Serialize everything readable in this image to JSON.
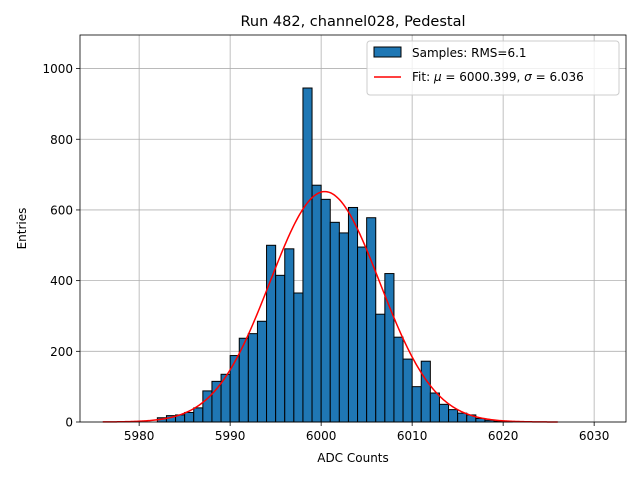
{
  "chart_data": {
    "type": "bar",
    "title": "Run 482, channel028, Pedestal",
    "xlabel": "ADC Counts",
    "ylabel": "Entries",
    "xlim": [
      5973.5,
      6033.5
    ],
    "ylim": [
      0,
      1095
    ],
    "x_ticks": [
      5980,
      5990,
      6000,
      6010,
      6020,
      6030
    ],
    "y_ticks": [
      0,
      200,
      400,
      600,
      800,
      1000
    ],
    "grid": true,
    "legend_position": "top-right",
    "histogram": {
      "name": "Samples: RMS=6.1",
      "color": "#1f77b4",
      "edge_color": "#000000",
      "bin_edges_start": 5982,
      "bin_width": 1,
      "values": [
        12,
        18,
        20,
        27,
        40,
        88,
        115,
        135,
        188,
        237,
        250,
        285,
        500,
        415,
        490,
        365,
        945,
        670,
        630,
        565,
        535,
        607,
        495,
        578,
        305,
        420,
        240,
        178,
        100,
        172,
        82,
        50,
        35,
        25,
        20,
        10,
        5,
        2,
        1
      ]
    },
    "fit": {
      "name": "Fit: μ = 6000.399, σ = 6.036",
      "label_prefix": "Fit: ",
      "mu_symbol": "μ",
      "mu_text": " = 6000.399, ",
      "sigma_symbol": "σ",
      "sigma_text": " = 6.036",
      "color": "#ff0000",
      "mu": 6000.399,
      "sigma": 6.036,
      "amplitude": 652,
      "x_range": [
        5976,
        6026
      ]
    }
  }
}
